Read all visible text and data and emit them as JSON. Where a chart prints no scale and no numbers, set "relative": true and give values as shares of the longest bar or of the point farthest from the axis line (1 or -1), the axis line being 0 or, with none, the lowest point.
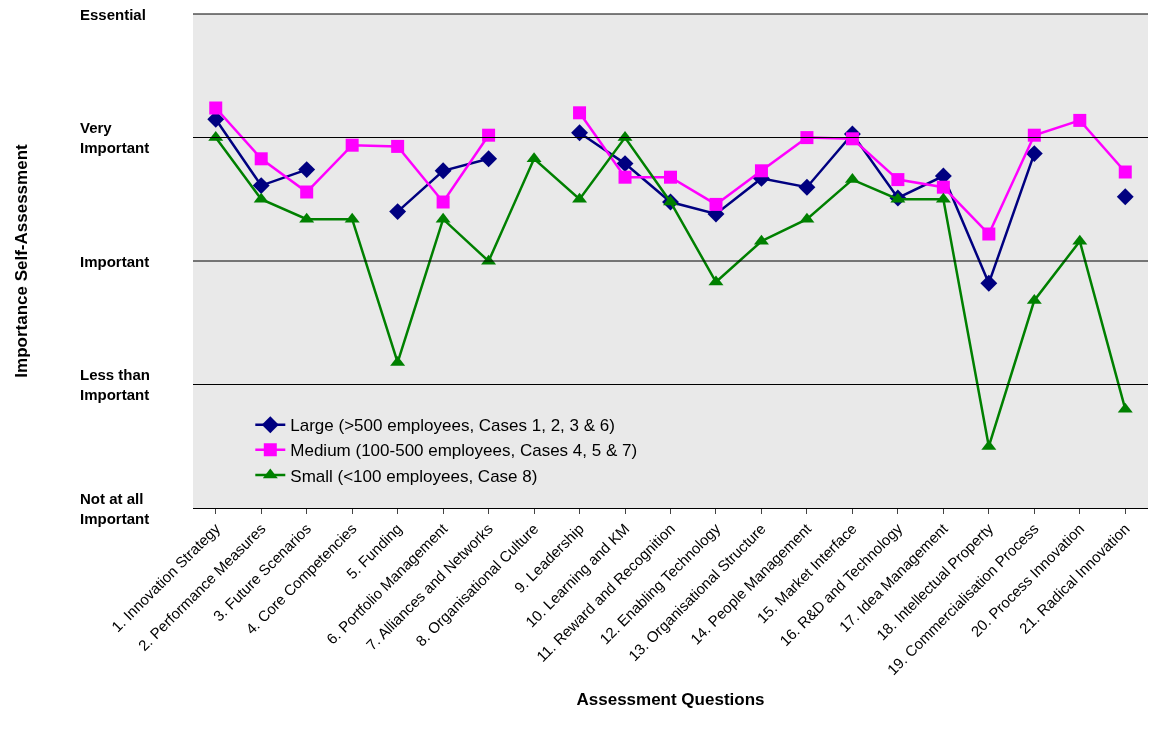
{
  "chart_data": {
    "type": "line",
    "xlabel": "Assessment Questions",
    "ylabel": "Importance Self-Assessment",
    "relative": true,
    "categories": [
      "1. Innovation Strategy",
      "2. Performance Measures",
      "3. Future Scenarios",
      "4. Core Competencies",
      "5. Funding",
      "6. Portfolio Management",
      "7. Alliances and Networks",
      "8. Organisational Culture",
      "9. Leadership",
      "10. Learning and KM",
      "11. Reward and Recognition",
      "12. Enabling Technology",
      "13. Organisational Structure",
      "14. People Management",
      "15. Market Interface",
      "16. R&D and Technology",
      "17. Idea Management",
      "18. Intellectual Property",
      "19. Commercialisation Process",
      "20. Process Innovation",
      "21. Radical Innovation"
    ],
    "series": [
      {
        "name": "Large (>500 employees, Cases 1, 2, 3 & 6)",
        "color": "#000080",
        "marker": "diamond",
        "values": [
          0.972,
          0.806,
          0.846,
          null,
          0.741,
          0.843,
          0.873,
          null,
          0.938,
          0.861,
          0.765,
          0.735,
          0.824,
          0.802,
          0.935,
          0.775,
          0.83,
          0.562,
          0.886,
          null,
          0.778
        ]
      },
      {
        "name": "Medium (100-500 employees, Cases 4, 5 & 7)",
        "color": "#ff00ff",
        "marker": "square",
        "values": [
          1.0,
          0.873,
          0.79,
          0.907,
          0.904,
          0.765,
          0.932,
          null,
          0.988,
          0.827,
          0.827,
          0.759,
          0.843,
          0.926,
          0.923,
          0.821,
          0.802,
          0.685,
          0.932,
          0.969,
          0.84
        ]
      },
      {
        "name": "Small (<100 employees, Case 8)",
        "color": "#008000",
        "marker": "triangle",
        "values": [
          0.926,
          0.772,
          0.722,
          0.722,
          0.364,
          0.722,
          0.617,
          0.873,
          0.772,
          0.926,
          0.765,
          0.565,
          0.667,
          0.722,
          0.821,
          0.772,
          0.772,
          0.154,
          0.519,
          0.667,
          0.247
        ]
      }
    ],
    "annotations": [
      "Not at all\nImportant",
      "Less than\nImportant",
      "Important",
      "Very\nImportant",
      "Essential"
    ],
    "grid": "y",
    "legend": "bottom left",
    "line_style": "solid"
  }
}
